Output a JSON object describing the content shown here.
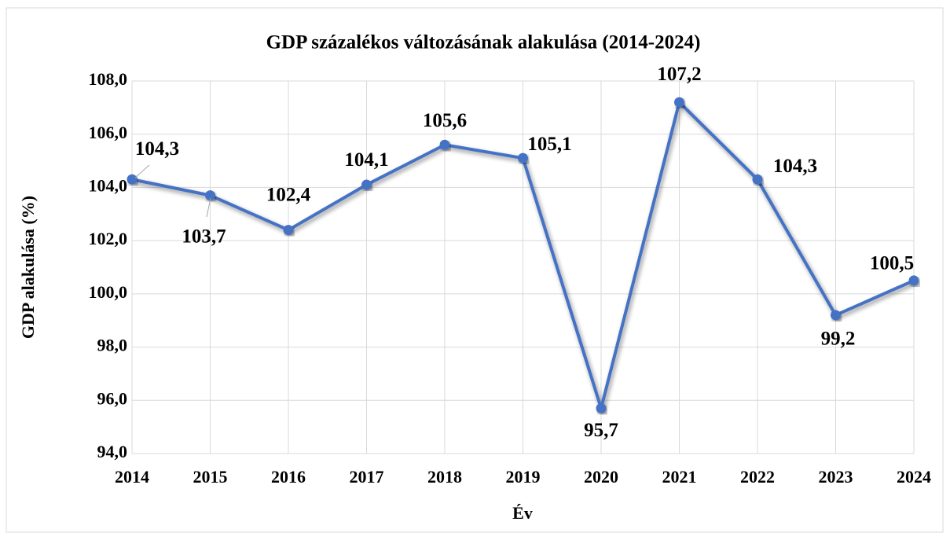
{
  "chart_data": {
    "type": "line",
    "title": "GDP százalékos változásának alakulása (2014-2024)",
    "x_label": "Év",
    "y_label": "GDP alakulása (%)",
    "categories": [
      "2014",
      "2015",
      "2016",
      "2017",
      "2018",
      "2019",
      "2020",
      "2021",
      "2022",
      "2023",
      "2024"
    ],
    "series": [
      {
        "name": "GDP",
        "color": "#4472c4",
        "values": [
          104.3,
          103.7,
          102.4,
          104.1,
          105.6,
          105.1,
          95.7,
          107.2,
          104.3,
          99.2,
          100.5
        ],
        "value_labels": [
          "104,3",
          "103,7",
          "102,4",
          "104,1",
          "105,6",
          "105,1",
          "95,7",
          "107,2",
          "104,3",
          "99,2",
          "100,5"
        ]
      }
    ],
    "ylim": [
      94,
      108
    ],
    "yticks": [
      {
        "value": 94,
        "label": "94,0"
      },
      {
        "value": 96,
        "label": "96,0"
      },
      {
        "value": 98,
        "label": "98,0"
      },
      {
        "value": 100,
        "label": "100,0"
      },
      {
        "value": 102,
        "label": "102,0"
      },
      {
        "value": 104,
        "label": "104,0"
      },
      {
        "value": 106,
        "label": "106,0"
      },
      {
        "value": 108,
        "label": "108,0"
      }
    ],
    "grid": true
  }
}
